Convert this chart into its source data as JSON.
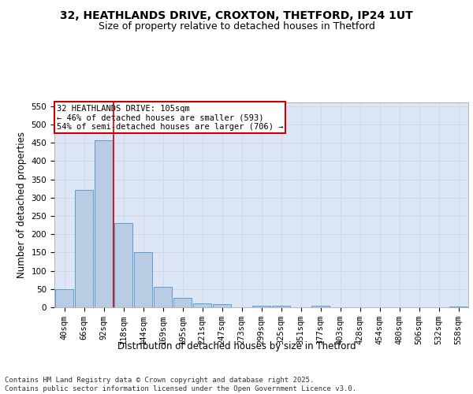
{
  "title_line1": "32, HEATHLANDS DRIVE, CROXTON, THETFORD, IP24 1UT",
  "title_line2": "Size of property relative to detached houses in Thetford",
  "xlabel": "Distribution of detached houses by size in Thetford",
  "ylabel": "Number of detached properties",
  "categories": [
    "40sqm",
    "66sqm",
    "92sqm",
    "118sqm",
    "144sqm",
    "169sqm",
    "195sqm",
    "221sqm",
    "247sqm",
    "273sqm",
    "299sqm",
    "325sqm",
    "351sqm",
    "377sqm",
    "403sqm",
    "428sqm",
    "454sqm",
    "480sqm",
    "506sqm",
    "532sqm",
    "558sqm"
  ],
  "values": [
    50,
    320,
    457,
    230,
    150,
    55,
    25,
    10,
    8,
    0,
    5,
    5,
    0,
    4,
    0,
    0,
    0,
    0,
    0,
    0,
    3
  ],
  "bar_color": "#b8cce4",
  "bar_edge_color": "#5b9bd5",
  "grid_color": "#d0d8e8",
  "background_color": "#dce6f5",
  "annotation_box_text": "32 HEATHLANDS DRIVE: 105sqm\n← 46% of detached houses are smaller (593)\n54% of semi-detached houses are larger (706) →",
  "annotation_box_color": "#cc0000",
  "property_line_x": 2.5,
  "ylim": [
    0,
    560
  ],
  "yticks": [
    0,
    50,
    100,
    150,
    200,
    250,
    300,
    350,
    400,
    450,
    500,
    550
  ],
  "footnote": "Contains HM Land Registry data © Crown copyright and database right 2025.\nContains public sector information licensed under the Open Government Licence v3.0.",
  "title_fontsize": 10,
  "subtitle_fontsize": 9,
  "axis_label_fontsize": 8.5,
  "tick_fontsize": 7.5,
  "annotation_fontsize": 7.5,
  "footnote_fontsize": 6.5
}
